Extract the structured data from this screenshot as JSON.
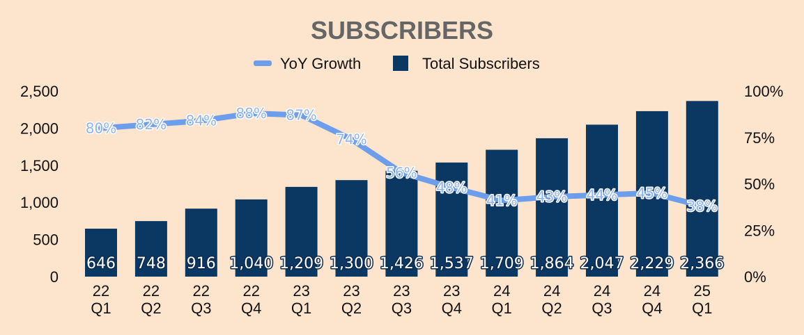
{
  "chart_data": {
    "type": "bar",
    "title": "SUBSCRIBERS",
    "categories": [
      [
        "22",
        "Q1"
      ],
      [
        "22",
        "Q2"
      ],
      [
        "22",
        "Q3"
      ],
      [
        "22",
        "Q4"
      ],
      [
        "23",
        "Q1"
      ],
      [
        "23",
        "Q2"
      ],
      [
        "23",
        "Q3"
      ],
      [
        "23",
        "Q4"
      ],
      [
        "24",
        "Q1"
      ],
      [
        "24",
        "Q2"
      ],
      [
        "24",
        "Q3"
      ],
      [
        "24",
        "Q4"
      ],
      [
        "25",
        "Q1"
      ]
    ],
    "series": [
      {
        "name": "Total Subscribers",
        "type": "bar",
        "color": "#0b3763",
        "values": [
          646,
          748,
          916,
          1040,
          1209,
          1300,
          1426,
          1537,
          1709,
          1864,
          2047,
          2229,
          2366
        ],
        "labels": [
          "646",
          "748",
          "916",
          "1,040",
          "1,209",
          "1,300",
          "1,426",
          "1,537",
          "1,709",
          "1,864",
          "2,047",
          "2,229",
          "2,366"
        ]
      },
      {
        "name": "YoY Growth",
        "type": "line",
        "color": "#6d9eeb",
        "values": [
          80,
          82,
          84,
          88,
          87,
          74,
          56,
          48,
          41,
          43,
          44,
          45,
          38
        ],
        "labels": [
          "80%",
          "82%",
          "84%",
          "88%",
          "87%",
          "74%",
          "56%",
          "48%",
          "41%",
          "43%",
          "44%",
          "45%",
          "38%"
        ]
      }
    ],
    "y_left": {
      "min": 0,
      "max": 2500,
      "ticks": [
        "0",
        "500",
        "1,000",
        "1,500",
        "2,000",
        "2,500"
      ]
    },
    "y_right": {
      "min": 0,
      "max": 100,
      "ticks": [
        "0%",
        "25%",
        "50%",
        "75%",
        "100%"
      ]
    },
    "legend": {
      "placement": "top",
      "items": [
        {
          "label": "YoY Growth",
          "color": "#6d9eeb",
          "shape": "line"
        },
        {
          "label": "Total Subscribers",
          "color": "#0b3763",
          "shape": "square"
        }
      ]
    },
    "grid": false
  }
}
